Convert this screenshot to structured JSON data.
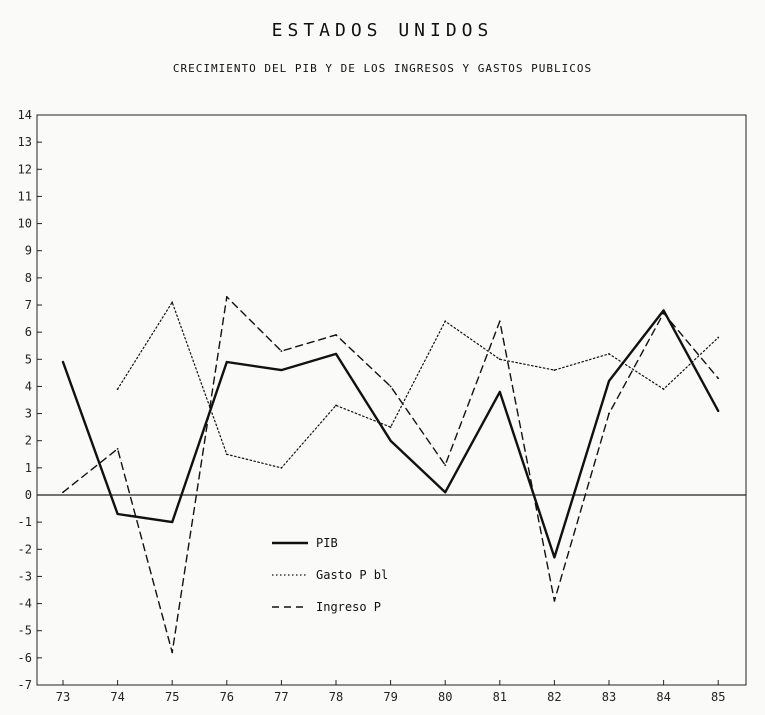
{
  "chart_data": {
    "type": "line",
    "title": "ESTADOS UNIDOS",
    "subtitle": "CRECIMIENTO DEL PIB Y DE LOS INGRESOS Y GASTOS PUBLICOS",
    "categories": [
      "73",
      "74",
      "75",
      "76",
      "77",
      "78",
      "79",
      "80",
      "81",
      "82",
      "83",
      "84",
      "85"
    ],
    "ylim": [
      -7,
      14
    ],
    "yticks": [
      "14",
      "13",
      "12",
      "11",
      "10",
      "9",
      "8",
      "7",
      "6",
      "5",
      "4",
      "3",
      "2",
      "1",
      "0",
      "-1",
      "-2",
      "-3",
      "-4",
      "-5",
      "-6",
      "-7"
    ],
    "series": [
      {
        "name": "PIB",
        "style": "solid",
        "values": [
          4.9,
          -0.7,
          -1.0,
          4.9,
          4.6,
          5.2,
          2.0,
          0.1,
          3.8,
          -2.3,
          4.2,
          6.8,
          3.1
        ]
      },
      {
        "name": "Gasto P bl",
        "style": "dotted",
        "values": [
          null,
          3.9,
          7.1,
          1.5,
          1.0,
          3.3,
          2.5,
          6.4,
          5.0,
          4.6,
          5.2,
          3.9,
          5.8
        ]
      },
      {
        "name": "Ingreso P",
        "style": "dashed",
        "values": [
          0.1,
          1.7,
          -5.8,
          7.3,
          5.3,
          5.9,
          4.0,
          1.1,
          6.4,
          -3.9,
          3.0,
          6.7,
          4.3
        ]
      }
    ],
    "legend_position": "lower-center",
    "grid": false
  }
}
